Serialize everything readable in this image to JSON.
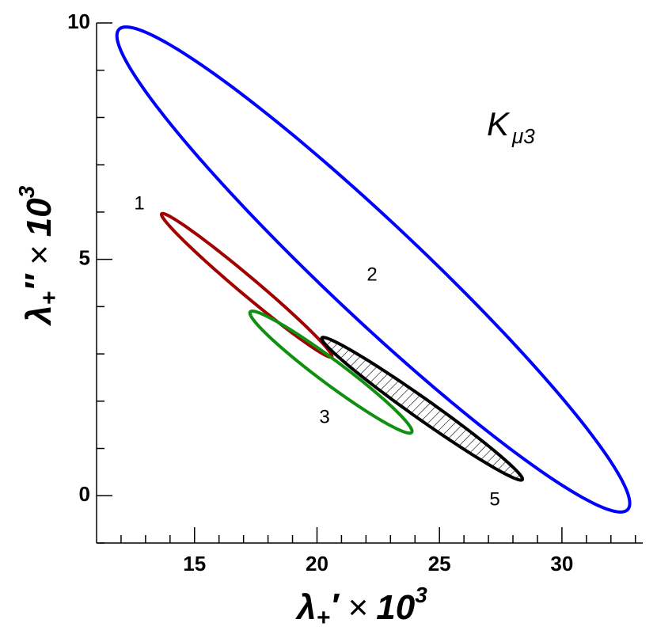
{
  "chart_data": {
    "type": "ellipse",
    "annotation": {
      "text": "K",
      "subscript": "μ3"
    },
    "x_label": {
      "symbol": "λ",
      "subscript": "+",
      "prime": "′",
      "times": "×",
      "base": "10",
      "exponent": "3"
    },
    "y_label": {
      "symbol": "λ",
      "subscript": "+",
      "prime": "″",
      "times": "×",
      "base": "10",
      "exponent": "3"
    },
    "xlim": [
      11,
      33.3
    ],
    "ylim": [
      -1,
      10
    ],
    "xticks": [
      15,
      20,
      25,
      30
    ],
    "yticks": [
      0,
      5,
      10
    ],
    "xminorticks": [
      12,
      13,
      14,
      16,
      17,
      18,
      19,
      21,
      22,
      23,
      24,
      26,
      27,
      28,
      29,
      31,
      32,
      33
    ],
    "yminorticks": [
      -1,
      1,
      2,
      3,
      4,
      6,
      7,
      8,
      9
    ],
    "series": [
      {
        "name": "2",
        "color": "#0000ff",
        "filled": false,
        "center_x": 22.3,
        "center_y": 4.785,
        "half_width": 10.47,
        "half_height": 5.13,
        "rho": -0.964
      },
      {
        "name": "1",
        "color": "#a00000",
        "filled": false,
        "center_x": 17.13,
        "center_y": 4.45,
        "half_width": 3.48,
        "half_height": 1.52,
        "rho": -0.987
      },
      {
        "name": "3",
        "color": "#109010",
        "filled": false,
        "center_x": 20.57,
        "center_y": 2.615,
        "half_width": 3.31,
        "half_height": 1.29,
        "rho": -0.97
      },
      {
        "name": "5",
        "color": "#000000",
        "filled": true,
        "center_x": 24.29,
        "center_y": 1.84,
        "half_width": 4.1,
        "half_height": 1.51,
        "rho": -0.985
      }
    ]
  }
}
